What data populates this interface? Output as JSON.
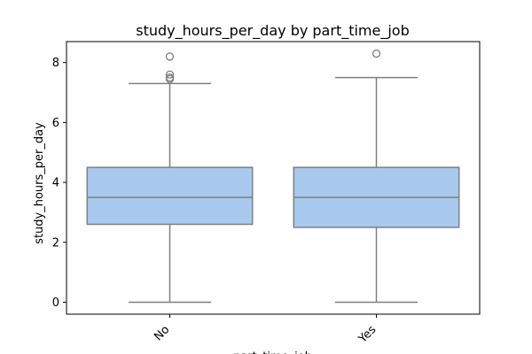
{
  "chart_data": {
    "type": "boxplot",
    "title": "study_hours_per_day by part_time_job",
    "xlabel": "part_time_job",
    "ylabel": "study_hours_per_day",
    "categories": [
      "No",
      "Yes"
    ],
    "ylim": [
      -0.4,
      8.7
    ],
    "yticks": [
      0,
      2,
      4,
      6,
      8
    ],
    "grid": false,
    "box_color": "#a9c9ee",
    "line_color": "#7f7f7f",
    "boxes": [
      {
        "category": "No",
        "whisker_low": 0,
        "q1": 2.6,
        "median": 3.5,
        "q3": 4.5,
        "whisker_high": 7.3,
        "outliers": [
          8.2,
          7.6,
          7.5,
          7.45
        ]
      },
      {
        "category": "Yes",
        "whisker_low": 0,
        "q1": 2.5,
        "median": 3.5,
        "q3": 4.5,
        "whisker_high": 7.5,
        "outliers": [
          8.3
        ]
      }
    ]
  }
}
